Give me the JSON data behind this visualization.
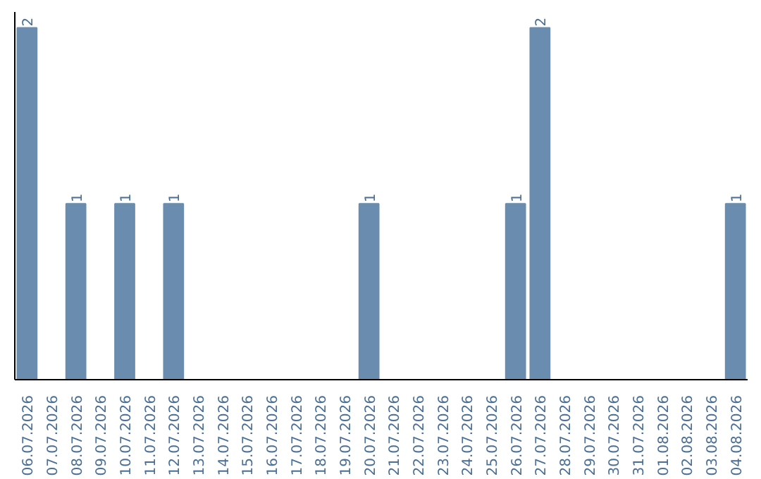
{
  "chart_data": {
    "type": "bar",
    "categories": [
      "06.07.2026",
      "07.07.2026",
      "08.07.2026",
      "09.07.2026",
      "10.07.2026",
      "11.07.2026",
      "12.07.2026",
      "13.07.2026",
      "14.07.2026",
      "15.07.2026",
      "16.07.2026",
      "17.07.2026",
      "18.07.2026",
      "19.07.2026",
      "20.07.2026",
      "21.07.2026",
      "22.07.2026",
      "23.07.2026",
      "24.07.2026",
      "25.07.2026",
      "26.07.2026",
      "27.07.2026",
      "28.07.2026",
      "29.07.2026",
      "30.07.2026",
      "31.07.2026",
      "01.08.2026",
      "02.08.2026",
      "03.08.2026",
      "04.08.2026"
    ],
    "values": [
      2,
      0,
      1,
      0,
      1,
      0,
      1,
      0,
      0,
      0,
      0,
      0,
      0,
      0,
      1,
      0,
      0,
      0,
      0,
      0,
      1,
      2,
      0,
      0,
      0,
      0,
      0,
      0,
      0,
      1
    ],
    "value_labels": [
      "2",
      null,
      "1",
      null,
      "1",
      null,
      "1",
      null,
      null,
      null,
      null,
      null,
      null,
      null,
      "1",
      null,
      null,
      null,
      null,
      null,
      "1",
      "2",
      null,
      null,
      null,
      null,
      null,
      null,
      null,
      "1"
    ],
    "color": "#6a8caf",
    "tick_labels": "x"
  }
}
